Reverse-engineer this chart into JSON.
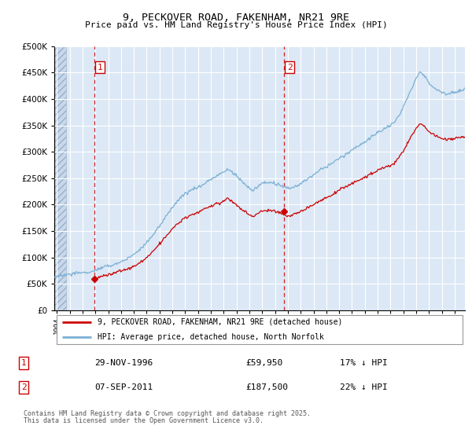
{
  "title_line1": "9, PECKOVER ROAD, FAKENHAM, NR21 9RE",
  "title_line2": "Price paid vs. HM Land Registry's House Price Index (HPI)",
  "background_color": "#ffffff",
  "plot_bg_color": "#dce8f5",
  "grid_color": "#ffffff",
  "red_line_color": "#cc0000",
  "blue_line_color": "#7aafd4",
  "purchase1_year": 1996.91,
  "purchase1_value": 59950,
  "purchase1_label": "1",
  "purchase2_year": 2011.68,
  "purchase2_value": 187500,
  "purchase2_label": "2",
  "xmin": 1993.8,
  "xmax": 2025.8,
  "ymin": 0,
  "ymax": 500000,
  "yticks": [
    0,
    50000,
    100000,
    150000,
    200000,
    250000,
    300000,
    350000,
    400000,
    450000,
    500000
  ],
  "ytick_labels": [
    "£0",
    "£50K",
    "£100K",
    "£150K",
    "£200K",
    "£250K",
    "£300K",
    "£350K",
    "£400K",
    "£450K",
    "£500K"
  ],
  "legend_entry1": "9, PECKOVER ROAD, FAKENHAM, NR21 9RE (detached house)",
  "legend_entry2": "HPI: Average price, detached house, North Norfolk",
  "footnote_line1": "Contains HM Land Registry data © Crown copyright and database right 2025.",
  "footnote_line2": "This data is licensed under the Open Government Licence v3.0.",
  "table_row1_label": "1",
  "table_row1_date": "29-NOV-1996",
  "table_row1_price": "£59,950",
  "table_row1_hpi": "17% ↓ HPI",
  "table_row2_label": "2",
  "table_row2_date": "07-SEP-2011",
  "table_row2_price": "£187,500",
  "table_row2_hpi": "22% ↓ HPI"
}
